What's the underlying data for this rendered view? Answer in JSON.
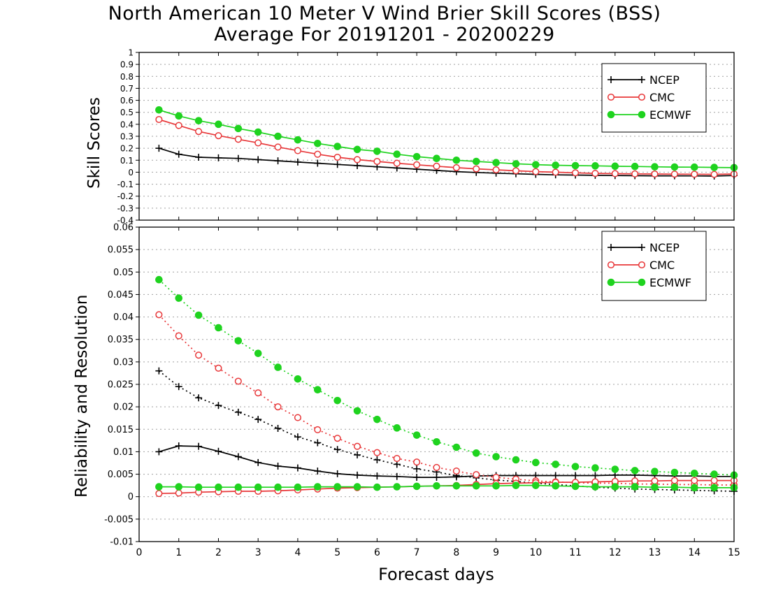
{
  "figure": {
    "title_line1": "North American 10 Meter V Wind Brier Skill Scores (BSS)",
    "title_line2": "Average For 20191201 - 20200229",
    "xlabel": "Forecast days"
  },
  "colors": {
    "NCEP": "#000000",
    "CMC": "#e8383a",
    "ECMWF": "#1fd31f",
    "grid": "#a0a0a0"
  },
  "chart_data": [
    {
      "type": "line",
      "ylabel": "Skill Scores",
      "xlim": [
        0,
        15
      ],
      "ylim": [
        -0.4,
        1
      ],
      "xticks": [
        "0",
        "1",
        "2",
        "3",
        "4",
        "5",
        "6",
        "7",
        "8",
        "9",
        "10",
        "11",
        "12",
        "13",
        "14",
        "15"
      ],
      "yticks": [
        "-0.4",
        "-0.3",
        "-0.2",
        "-0.1",
        "0",
        "0.1",
        "0.2",
        "0.3",
        "0.4",
        "0.5",
        "0.6",
        "0.7",
        "0.8",
        "0.9",
        "1"
      ],
      "grid": true,
      "legend_position": "top-right",
      "x": [
        0.5,
        1,
        1.5,
        2,
        2.5,
        3,
        3.5,
        4,
        4.5,
        5,
        5.5,
        6,
        6.5,
        7,
        7.5,
        8,
        8.5,
        9,
        9.5,
        10,
        10.5,
        11,
        11.5,
        12,
        12.5,
        13,
        13.5,
        14,
        14.5,
        15
      ],
      "series": [
        {
          "name": "NCEP",
          "marker": "plus",
          "style": "solid",
          "values": [
            0.2,
            0.15,
            0.125,
            0.12,
            0.115,
            0.105,
            0.095,
            0.085,
            0.075,
            0.065,
            0.055,
            0.045,
            0.035,
            0.025,
            0.015,
            0.005,
            -0.002,
            -0.008,
            -0.013,
            -0.018,
            -0.022,
            -0.024,
            -0.026,
            -0.028,
            -0.029,
            -0.03,
            -0.03,
            -0.031,
            -0.032,
            -0.028
          ]
        },
        {
          "name": "CMC",
          "marker": "open-circle",
          "style": "solid",
          "values": [
            0.44,
            0.39,
            0.34,
            0.305,
            0.275,
            0.245,
            0.21,
            0.18,
            0.15,
            0.125,
            0.105,
            0.09,
            0.075,
            0.062,
            0.05,
            0.038,
            0.028,
            0.02,
            0.012,
            0.005,
            0.0,
            -0.005,
            -0.01,
            -0.012,
            -0.014,
            -0.015,
            -0.016,
            -0.017,
            -0.018,
            -0.015
          ]
        },
        {
          "name": "ECMWF",
          "marker": "filled-circle",
          "style": "solid",
          "values": [
            0.52,
            0.47,
            0.43,
            0.4,
            0.365,
            0.335,
            0.3,
            0.27,
            0.24,
            0.215,
            0.19,
            0.175,
            0.15,
            0.13,
            0.115,
            0.1,
            0.09,
            0.08,
            0.07,
            0.063,
            0.058,
            0.055,
            0.053,
            0.05,
            0.048,
            0.045,
            0.043,
            0.042,
            0.04,
            0.038
          ]
        }
      ]
    },
    {
      "type": "line",
      "ylabel": "Reliability and Resolution",
      "xlabel": "Forecast days",
      "xlim": [
        0,
        15
      ],
      "ylim": [
        -0.01,
        0.06
      ],
      "xticks": [
        "0",
        "1",
        "2",
        "3",
        "4",
        "5",
        "6",
        "7",
        "8",
        "9",
        "10",
        "11",
        "12",
        "13",
        "14",
        "15"
      ],
      "yticks": [
        "-0.01",
        "-0.005",
        "0",
        "0.005",
        "0.01",
        "0.015",
        "0.02",
        "0.025",
        "0.03",
        "0.035",
        "0.04",
        "0.045",
        "0.05",
        "0.055",
        "0.06"
      ],
      "grid": true,
      "legend_position": "top-right",
      "x": [
        0.5,
        1,
        1.5,
        2,
        2.5,
        3,
        3.5,
        4,
        4.5,
        5,
        5.5,
        6,
        6.5,
        7,
        7.5,
        8,
        8.5,
        9,
        9.5,
        10,
        10.5,
        11,
        11.5,
        12,
        12.5,
        13,
        13.5,
        14,
        14.5,
        15
      ],
      "series": [
        {
          "name": "NCEP",
          "component": "resolution",
          "marker": "plus",
          "style": "dotted",
          "values": [
            0.028,
            0.0245,
            0.022,
            0.0203,
            0.0188,
            0.0172,
            0.0152,
            0.0133,
            0.012,
            0.0105,
            0.0093,
            0.0082,
            0.0072,
            0.0062,
            0.0055,
            0.0047,
            0.0042,
            0.0037,
            0.0034,
            0.003,
            0.0027,
            0.0024,
            0.0021,
            0.0019,
            0.0017,
            0.0016,
            0.0015,
            0.0014,
            0.0013,
            0.0012
          ]
        },
        {
          "name": "NCEP",
          "component": "reliability",
          "marker": "plus",
          "style": "solid",
          "values": [
            0.01,
            0.0113,
            0.0112,
            0.0101,
            0.0089,
            0.0076,
            0.0068,
            0.0064,
            0.0057,
            0.0051,
            0.0048,
            0.0046,
            0.0045,
            0.0043,
            0.0043,
            0.0044,
            0.0046,
            0.0047,
            0.0047,
            0.0047,
            0.0047,
            0.0047,
            0.0047,
            0.0048,
            0.0048,
            0.0047,
            0.0046,
            0.0046,
            0.0045,
            0.0045
          ]
        },
        {
          "name": "CMC",
          "component": "resolution",
          "marker": "open-circle",
          "style": "dotted",
          "values": [
            0.0405,
            0.0358,
            0.0315,
            0.0286,
            0.0257,
            0.0231,
            0.02,
            0.0176,
            0.0149,
            0.013,
            0.0112,
            0.0098,
            0.0085,
            0.0077,
            0.0065,
            0.0057,
            0.0049,
            0.0043,
            0.0039,
            0.0035,
            0.0033,
            0.0031,
            0.003,
            0.003,
            0.0028,
            0.0028,
            0.0027,
            0.0027,
            0.0026,
            0.0026
          ]
        },
        {
          "name": "CMC",
          "component": "reliability",
          "marker": "open-circle",
          "style": "solid",
          "values": [
            0.0007,
            0.0008,
            0.001,
            0.0011,
            0.0012,
            0.0012,
            0.0013,
            0.0015,
            0.0017,
            0.0019,
            0.002,
            0.0021,
            0.0022,
            0.0023,
            0.0024,
            0.0025,
            0.0027,
            0.0029,
            0.003,
            0.0031,
            0.0032,
            0.0032,
            0.0033,
            0.0034,
            0.0035,
            0.0035,
            0.0036,
            0.0036,
            0.0036,
            0.0036
          ]
        },
        {
          "name": "ECMWF",
          "component": "resolution",
          "marker": "filled-circle",
          "style": "dotted",
          "values": [
            0.0483,
            0.0442,
            0.0404,
            0.0376,
            0.0347,
            0.0319,
            0.0288,
            0.0262,
            0.0238,
            0.0214,
            0.0191,
            0.0172,
            0.0153,
            0.0137,
            0.0122,
            0.011,
            0.0097,
            0.0089,
            0.0082,
            0.0076,
            0.0072,
            0.0067,
            0.0064,
            0.0061,
            0.0058,
            0.0056,
            0.0054,
            0.0052,
            0.005,
            0.0048
          ]
        },
        {
          "name": "ECMWF",
          "component": "reliability",
          "marker": "filled-circle",
          "style": "solid",
          "values": [
            0.0022,
            0.0022,
            0.0021,
            0.0021,
            0.0021,
            0.0021,
            0.0021,
            0.0021,
            0.0022,
            0.0022,
            0.0022,
            0.0021,
            0.0022,
            0.0023,
            0.0024,
            0.0024,
            0.0024,
            0.0024,
            0.0025,
            0.0025,
            0.0024,
            0.0023,
            0.0022,
            0.0022,
            0.0022,
            0.0021,
            0.0021,
            0.002,
            0.002,
            0.002
          ]
        }
      ]
    }
  ]
}
